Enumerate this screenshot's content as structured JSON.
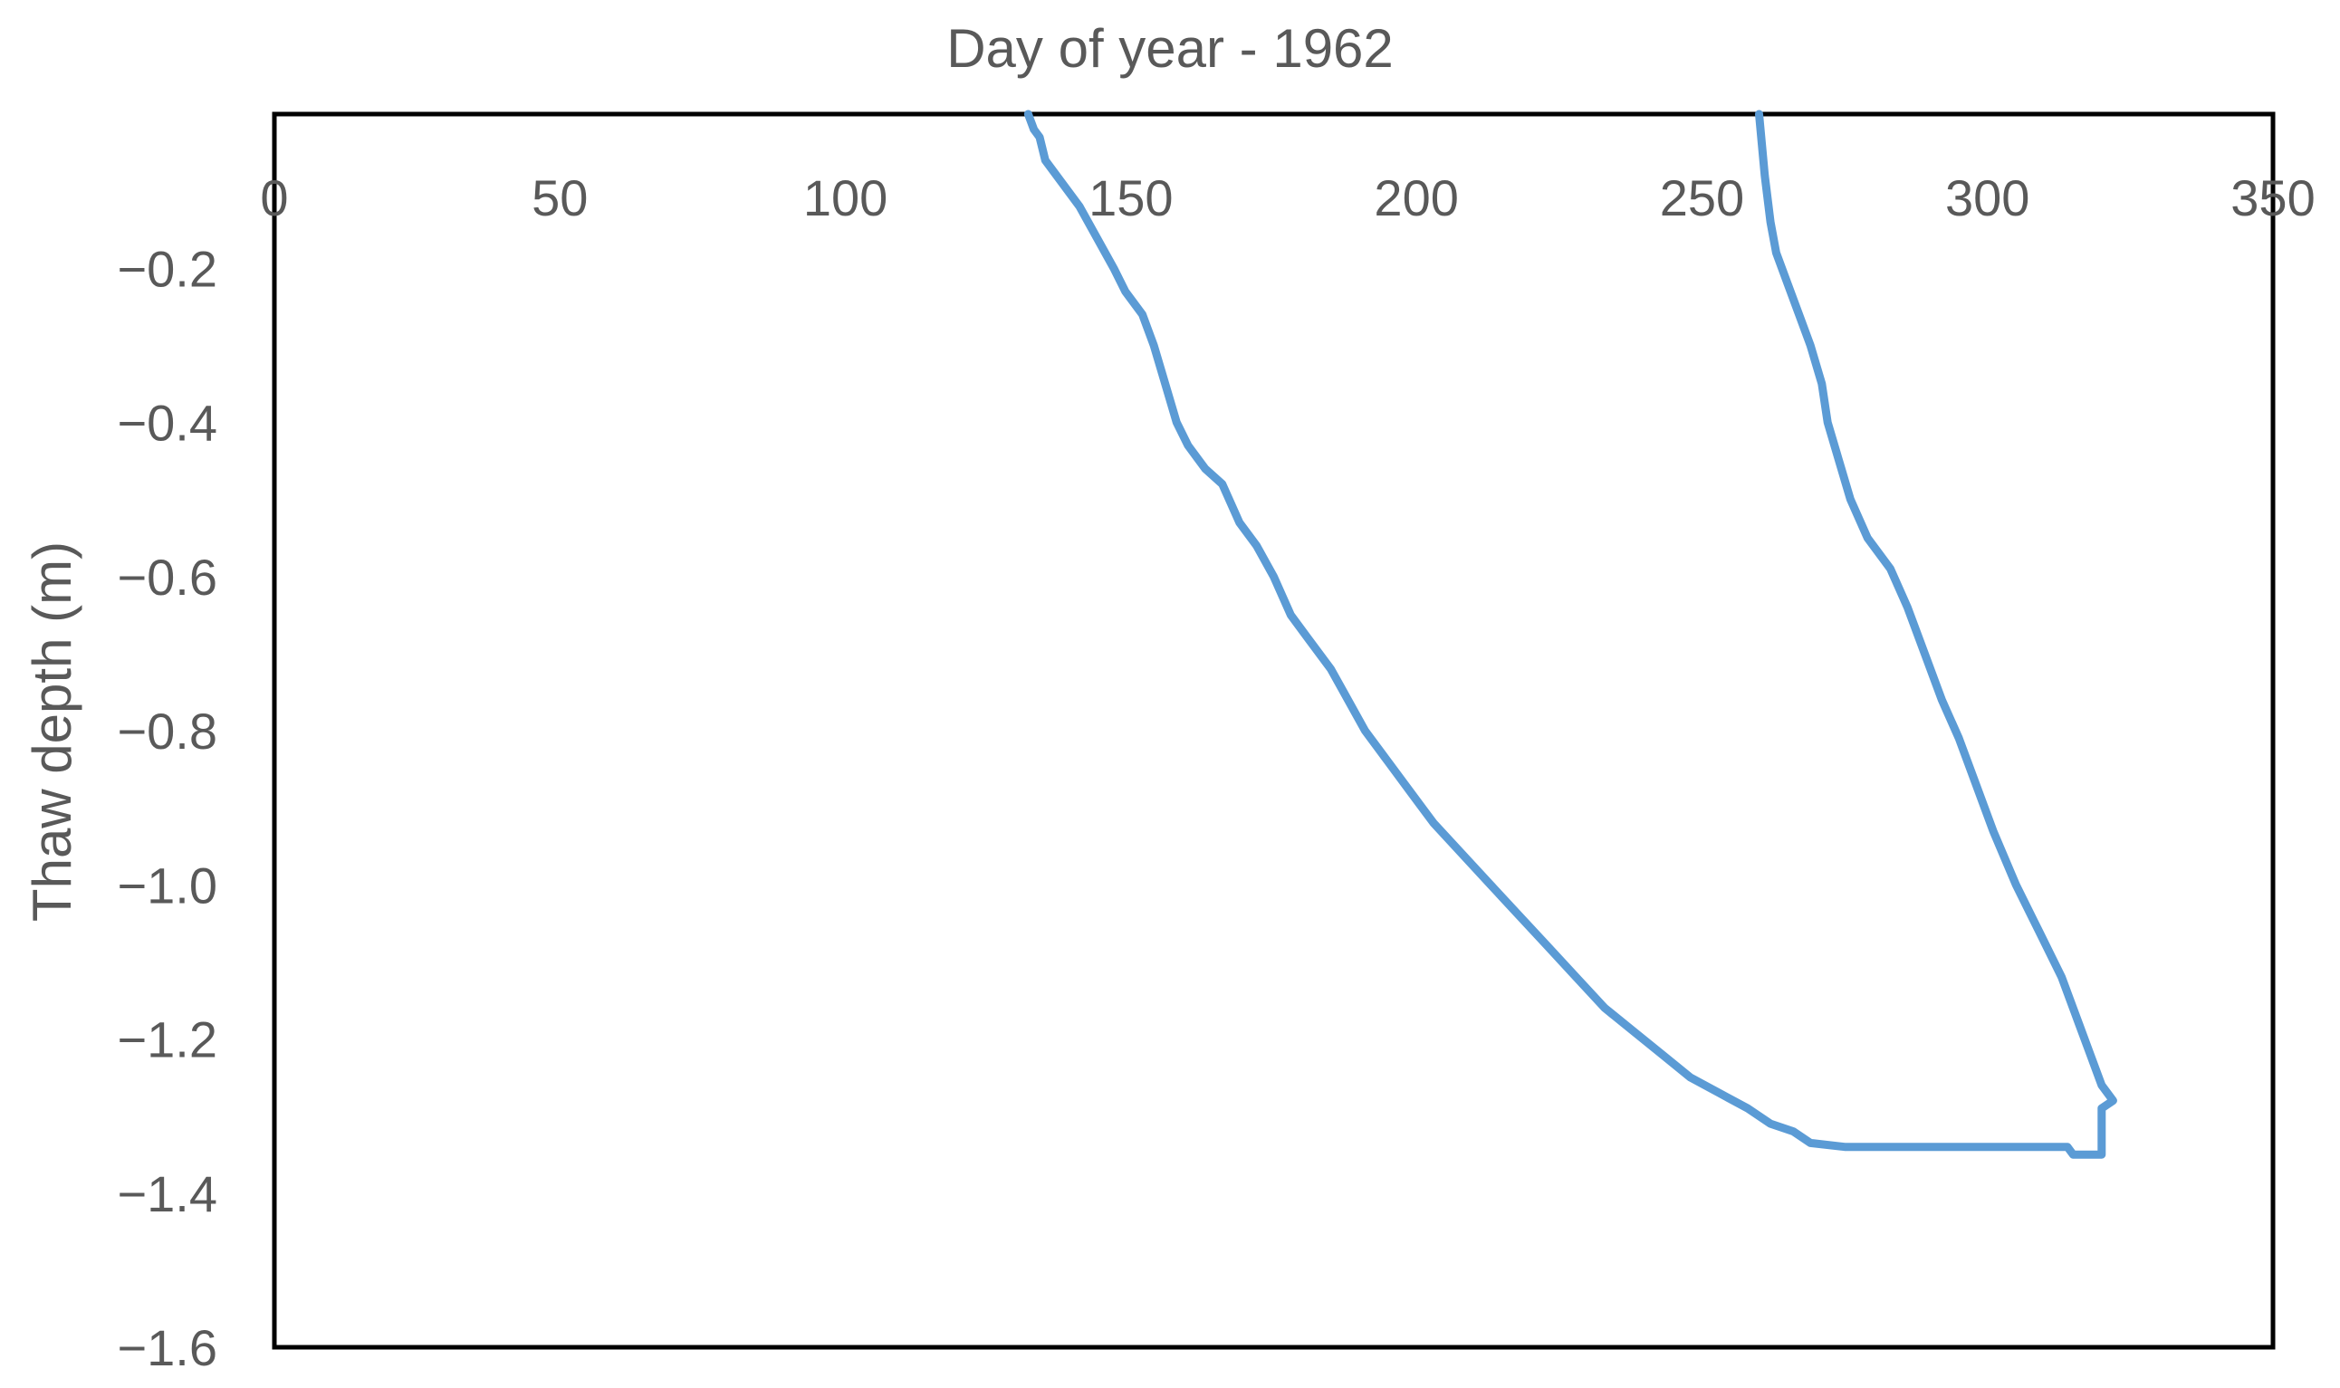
{
  "chart_data": {
    "type": "line",
    "title": "",
    "xlabel": "Day of year - 1962",
    "ylabel": "Thaw depth (m)",
    "xlim": [
      0,
      350
    ],
    "ylim": [
      -1.6,
      0
    ],
    "x_ticks": [
      0,
      50,
      100,
      150,
      200,
      250,
      300,
      350
    ],
    "x_tick_labels": [
      "0",
      "50",
      "100",
      "150",
      "200",
      "250",
      "300",
      "350"
    ],
    "y_ticks": [
      -0.2,
      -0.4,
      -0.6,
      -0.8,
      -1.0,
      -1.2,
      -1.4,
      -1.6
    ],
    "y_tick_labels": [
      "−0.2",
      "−0.4",
      "−0.6",
      "−0.8",
      "−1.0",
      "−1.2",
      "−1.4",
      "−1.6"
    ],
    "x_axis_position": "top",
    "grid": false,
    "legend": "none",
    "line_color": "#5B9BD5",
    "series": [
      {
        "points": [
          [
            132,
            0.0
          ],
          [
            133,
            -0.02
          ],
          [
            134,
            -0.03
          ],
          [
            135,
            -0.06
          ],
          [
            138,
            -0.09
          ],
          [
            141,
            -0.12
          ],
          [
            144,
            -0.16
          ],
          [
            147,
            -0.2
          ],
          [
            149,
            -0.23
          ],
          [
            152,
            -0.26
          ],
          [
            154,
            -0.3
          ],
          [
            156,
            -0.35
          ],
          [
            158,
            -0.4
          ],
          [
            160,
            -0.43
          ],
          [
            163,
            -0.46
          ],
          [
            166,
            -0.48
          ],
          [
            169,
            -0.53
          ],
          [
            172,
            -0.56
          ],
          [
            175,
            -0.6
          ],
          [
            178,
            -0.65
          ],
          [
            181,
            -0.68
          ],
          [
            185,
            -0.72
          ],
          [
            188,
            -0.76
          ],
          [
            191,
            -0.8
          ],
          [
            195,
            -0.84
          ],
          [
            199,
            -0.88
          ],
          [
            203,
            -0.92
          ],
          [
            208,
            -0.96
          ],
          [
            213,
            -1.0
          ],
          [
            218,
            -1.04
          ],
          [
            223,
            -1.08
          ],
          [
            228,
            -1.12
          ],
          [
            233,
            -1.16
          ],
          [
            238,
            -1.19
          ],
          [
            243,
            -1.22
          ],
          [
            248,
            -1.25
          ],
          [
            253,
            -1.27
          ],
          [
            258,
            -1.29
          ],
          [
            262,
            -1.31
          ],
          [
            266,
            -1.32
          ],
          [
            269,
            -1.335
          ],
          [
            275,
            -1.34
          ],
          [
            290,
            -1.34
          ],
          [
            305,
            -1.34
          ],
          [
            314,
            -1.34
          ],
          [
            315,
            -1.35
          ],
          [
            320,
            -1.35
          ],
          [
            320,
            -1.29
          ],
          [
            322,
            -1.28
          ],
          [
            320,
            -1.26
          ],
          [
            318,
            -1.22
          ],
          [
            316,
            -1.18
          ],
          [
            313,
            -1.12
          ],
          [
            309,
            -1.06
          ],
          [
            305,
            -1.0
          ],
          [
            301,
            -0.93
          ],
          [
            298,
            -0.87
          ],
          [
            295,
            -0.81
          ],
          [
            292,
            -0.76
          ],
          [
            289,
            -0.7
          ],
          [
            286,
            -0.64
          ],
          [
            283,
            -0.59
          ],
          [
            279,
            -0.55
          ],
          [
            276,
            -0.5
          ],
          [
            274,
            -0.45
          ],
          [
            272,
            -0.4
          ],
          [
            271,
            -0.35
          ],
          [
            269,
            -0.3
          ],
          [
            267,
            -0.26
          ],
          [
            265,
            -0.22
          ],
          [
            263,
            -0.18
          ],
          [
            262,
            -0.14
          ],
          [
            261,
            -0.08
          ],
          [
            260,
            0.0
          ]
        ]
      }
    ]
  }
}
